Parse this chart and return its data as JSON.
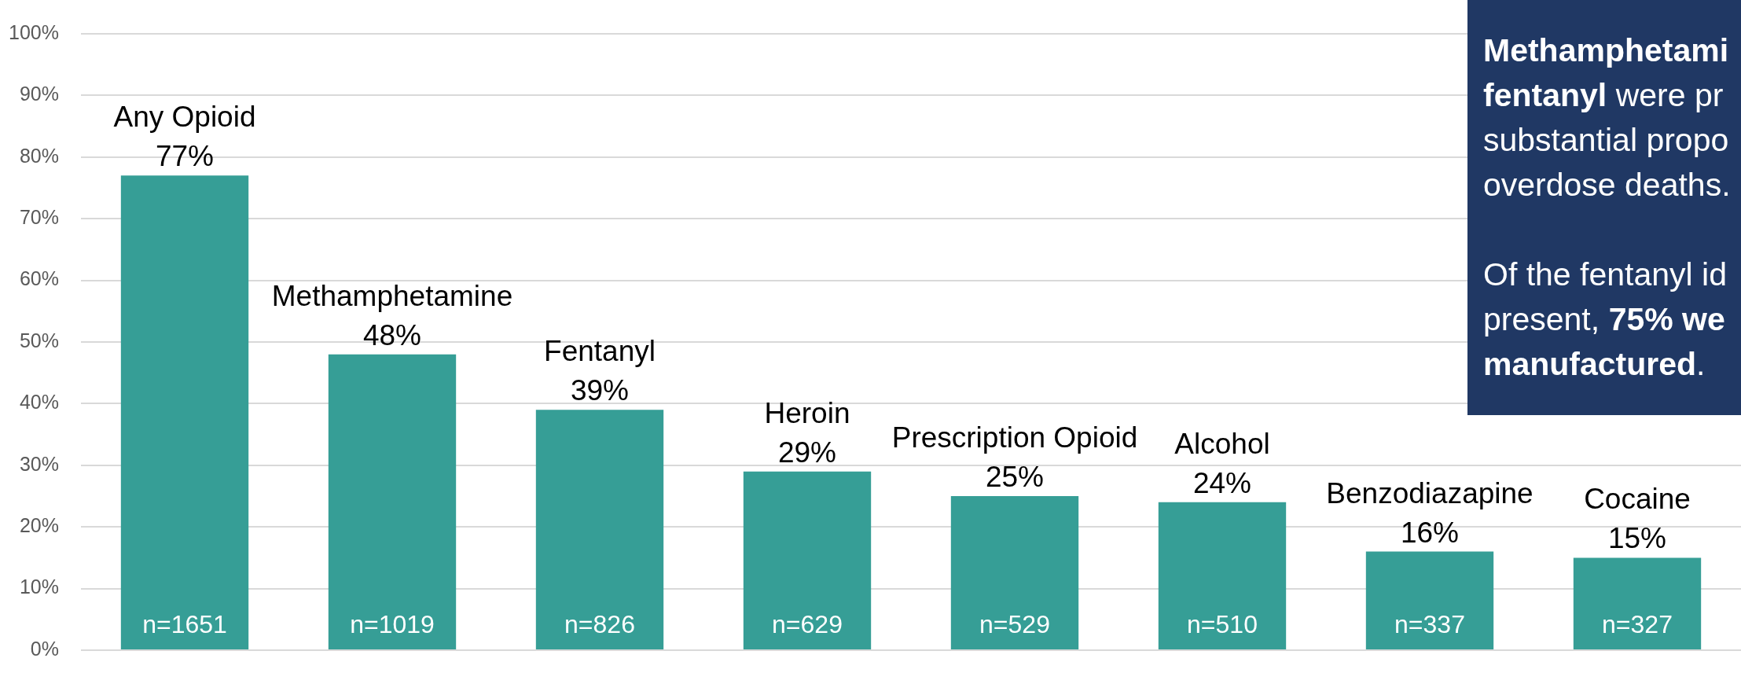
{
  "chart_data": {
    "type": "bar",
    "categories": [
      "Any Opioid",
      "Methamphetamine",
      "Fentanyl",
      "Heroin",
      "Prescription Opioid",
      "Alcohol",
      "Benzodiazapine",
      "Cocaine"
    ],
    "values": [
      77,
      48,
      39,
      29,
      25,
      24,
      16,
      15
    ],
    "value_labels": [
      "77%",
      "48%",
      "39%",
      "29%",
      "25%",
      "24%",
      "16%",
      "15%"
    ],
    "color": "#369e96",
    "ylim": [
      0,
      100
    ],
    "yticks": [
      {
        "value": 0,
        "label": "0%"
      },
      {
        "value": 10,
        "label": "10%"
      },
      {
        "value": 20,
        "label": "20%"
      },
      {
        "value": 30,
        "label": "30%"
      },
      {
        "value": 40,
        "label": "40%"
      },
      {
        "value": 50,
        "label": "50%"
      },
      {
        "value": 60,
        "label": "60%"
      },
      {
        "value": 70,
        "label": "70%"
      },
      {
        "value": 80,
        "label": "80%"
      },
      {
        "value": 90,
        "label": "90%"
      },
      {
        "value": 100,
        "label": "100%"
      }
    ],
    "grid": "y",
    "tick_labels": "y",
    "annotations": [
      "Methamphetami",
      "fentanyl",
      "were pr",
      "substantial propo",
      "overdose deaths.",
      "Of the fentanyl id",
      "present,",
      "75% we",
      "manufactured",
      ".",
      {
        "text": "n=1651",
        "x": "Any Opioid",
        "y": 0
      },
      {
        "text": "n=1019",
        "x": "Methamphetamine",
        "y": 0
      },
      {
        "text": "n=826",
        "x": "Fentanyl",
        "y": 0
      },
      {
        "text": "n=629",
        "x": "Heroin",
        "y": 0
      },
      {
        "text": "n=529",
        "x": "Prescription Opioid",
        "y": 0
      },
      {
        "text": "n=510",
        "x": "Alcohol",
        "y": 0
      },
      {
        "text": "n=337",
        "x": "Benzodiazapine",
        "y": 0
      },
      {
        "text": "n=327",
        "x": "Cocaine",
        "y": 0
      }
    ]
  }
}
